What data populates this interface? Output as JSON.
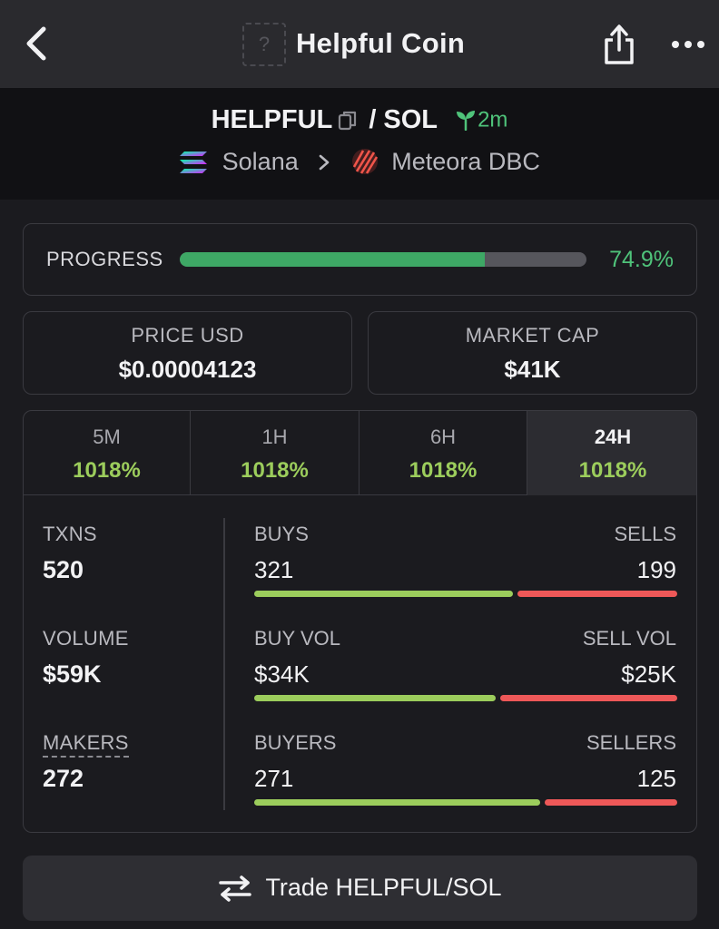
{
  "header": {
    "logo_placeholder": "?",
    "coin_name": "Helpful Coin",
    "icons": [
      "back-chevron-icon",
      "share-icon",
      "more-dots-icon"
    ]
  },
  "pair": {
    "base": "HELPFUL",
    "separator": "/",
    "quote": "SOL",
    "age": "2m",
    "chain": "Solana",
    "dex": "Meteora DBC",
    "icons": [
      "copy-icon",
      "seedling-icon",
      "solana-logo-icon",
      "meteora-logo-icon",
      "chevron-right-icon"
    ]
  },
  "progress": {
    "label": "PROGRESS",
    "value_text": "74.9%",
    "fraction": 0.749,
    "fill_color": "#3ea865"
  },
  "stats": {
    "price": {
      "label": "PRICE USD",
      "value": "$0.00004123"
    },
    "market_cap": {
      "label": "MARKET CAP",
      "value": "$41K"
    }
  },
  "tabs": [
    {
      "label": "5M",
      "value": "1018%"
    },
    {
      "label": "1H",
      "value": "1018%"
    },
    {
      "label": "6H",
      "value": "1018%"
    },
    {
      "label": "24H",
      "value": "1018%",
      "active": true
    }
  ],
  "metrics": {
    "txns": {
      "label": "TXNS",
      "value": "520"
    },
    "volume": {
      "label": "VOLUME",
      "value": "$59K"
    },
    "makers": {
      "label": "MAKERS",
      "value": "272"
    }
  },
  "splits": {
    "txns": {
      "left_label": "BUYS",
      "left_value": "321",
      "right_label": "SELLS",
      "right_value": "199",
      "left_num": 321,
      "right_num": 199
    },
    "volume": {
      "left_label": "BUY VOL",
      "left_value": "$34K",
      "right_label": "SELL VOL",
      "right_value": "$25K",
      "left_num": 34,
      "right_num": 25
    },
    "makers": {
      "left_label": "BUYERS",
      "left_value": "271",
      "right_label": "SELLERS",
      "right_value": "125",
      "left_num": 271,
      "right_num": 125
    }
  },
  "colors": {
    "green": "#9ccd5c",
    "red": "#ee5858",
    "accent_green": "#4fc37a"
  },
  "trade": {
    "label": "Trade HELPFUL/SOL",
    "icon": "swap-arrows-icon"
  }
}
